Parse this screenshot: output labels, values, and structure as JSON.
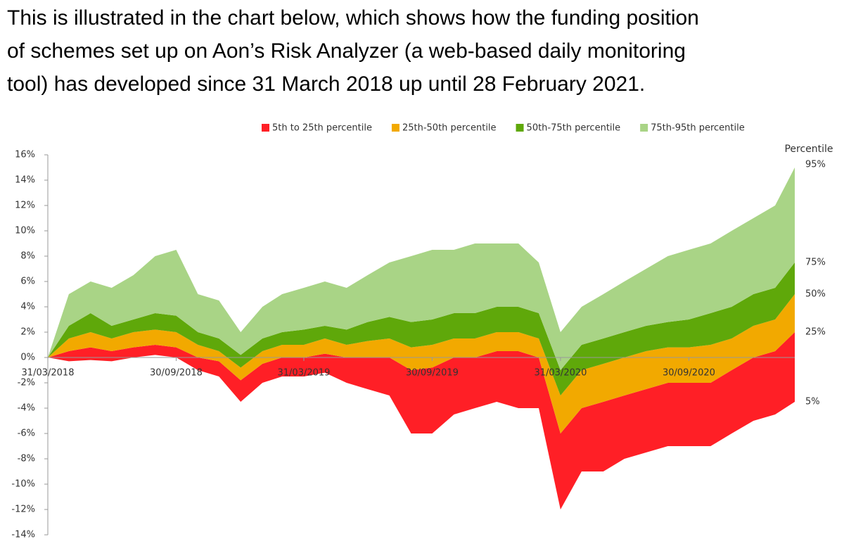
{
  "intro": [
    "This is illustrated in the chart below, which shows how the funding position",
    "of schemes set up on Aon’s Risk Analyzer (a web-based daily monitoring",
    "tool) has developed since 31 March 2018 up until 28 February 2021."
  ],
  "chart_data": {
    "type": "fan",
    "x": [
      "2018-03-31",
      "2018-04-30",
      "2018-05-31",
      "2018-06-30",
      "2018-07-31",
      "2018-08-31",
      "2018-09-30",
      "2018-10-31",
      "2018-11-30",
      "2018-12-31",
      "2019-01-31",
      "2019-02-28",
      "2019-03-31",
      "2019-04-30",
      "2019-05-31",
      "2019-06-30",
      "2019-07-31",
      "2019-08-31",
      "2019-09-30",
      "2019-10-31",
      "2019-11-30",
      "2019-12-31",
      "2020-01-31",
      "2020-02-29",
      "2020-03-31",
      "2020-04-30",
      "2020-05-31",
      "2020-06-30",
      "2020-07-31",
      "2020-08-31",
      "2020-09-30",
      "2020-10-31",
      "2020-11-30",
      "2020-12-31",
      "2021-01-31",
      "2021-02-28"
    ],
    "percentile_title": "Percentile",
    "percentiles": [
      {
        "label": "5%",
        "values": [
          0,
          -0.3,
          -0.2,
          -0.3,
          0,
          0.2,
          0,
          -1,
          -1.5,
          -3.5,
          -2,
          -1.5,
          -1.5,
          -1.2,
          -2,
          -2.5,
          -3,
          -6,
          -6,
          -4.5,
          -4,
          -3.5,
          -4,
          -4,
          -12,
          -9,
          -9,
          -8,
          -7.5,
          -7,
          -7,
          -7,
          -6,
          -5,
          -4.5,
          -3.5
        ]
      },
      {
        "label": "25%",
        "values": [
          0,
          0.5,
          0.8,
          0.5,
          0.8,
          1,
          0.8,
          0,
          -0.3,
          -1.8,
          -0.5,
          0,
          0,
          0.3,
          0,
          0,
          0,
          -1,
          -0.8,
          0,
          0,
          0.5,
          0.5,
          0,
          -6,
          -4,
          -3.5,
          -3,
          -2.5,
          -2,
          -2,
          -2,
          -1,
          0,
          0.5,
          2
        ]
      },
      {
        "label": "50%",
        "values": [
          0,
          1.5,
          2,
          1.5,
          2,
          2.2,
          2,
          1,
          0.5,
          -0.8,
          0.5,
          1,
          1,
          1.5,
          1,
          1.3,
          1.5,
          0.8,
          1,
          1.5,
          1.5,
          2,
          2,
          1.5,
          -3,
          -1,
          -0.5,
          0,
          0.5,
          0.8,
          0.8,
          1,
          1.5,
          2.5,
          3,
          5
        ]
      },
      {
        "label": "75%",
        "values": [
          0,
          2.5,
          3.5,
          2.5,
          3,
          3.5,
          3.3,
          2,
          1.5,
          0.2,
          1.5,
          2,
          2.2,
          2.5,
          2.2,
          2.8,
          3.2,
          2.8,
          3,
          3.5,
          3.5,
          4,
          4,
          3.5,
          -1,
          1,
          1.5,
          2,
          2.5,
          2.8,
          3,
          3.5,
          4,
          5,
          5.5,
          7.5
        ]
      },
      {
        "label": "95%",
        "values": [
          0,
          5,
          6,
          5.5,
          6.5,
          8,
          8.5,
          5,
          4.5,
          2,
          4,
          5,
          5.5,
          6,
          5.5,
          6.5,
          7.5,
          8,
          8.5,
          8.5,
          9,
          9,
          9,
          7.5,
          2,
          4,
          5,
          6,
          7,
          8,
          8.5,
          9,
          10,
          11,
          12,
          15
        ]
      }
    ],
    "series": [
      {
        "name": "5th to 25th percentile",
        "color": "#ff1f26"
      },
      {
        "name": "25th-50th percentile",
        "color": "#f2a900"
      },
      {
        "name": "50th-75th percentile",
        "color": "#5fa80a"
      },
      {
        "name": "75th-95th percentile",
        "color": "#a9d486"
      }
    ],
    "xlim": [
      "2018-03-31",
      "2021-02-28"
    ],
    "xticks": [
      {
        "value": "2018-03-31",
        "label": "31/03/2018"
      },
      {
        "value": "2018-09-30",
        "label": "30/09/2018"
      },
      {
        "value": "2019-03-31",
        "label": "31/03/2019"
      },
      {
        "value": "2019-09-30",
        "label": "30/09/2019"
      },
      {
        "value": "2020-03-31",
        "label": "31/03/2020"
      },
      {
        "value": "2020-09-30",
        "label": "30/09/2020"
      }
    ],
    "ylim": [
      -14,
      16
    ],
    "yticks": [
      {
        "value": -14,
        "label": "-14%"
      },
      {
        "value": -12,
        "label": "-12%"
      },
      {
        "value": -10,
        "label": "-10%"
      },
      {
        "value": -8,
        "label": "-8%"
      },
      {
        "value": -6,
        "label": "-6%"
      },
      {
        "value": -4,
        "label": "-4%"
      },
      {
        "value": -2,
        "label": "-2%"
      },
      {
        "value": 0,
        "label": "0%"
      },
      {
        "value": 2,
        "label": "2%"
      },
      {
        "value": 4,
        "label": "4%"
      },
      {
        "value": 6,
        "label": "6%"
      },
      {
        "value": 8,
        "label": "8%"
      },
      {
        "value": 10,
        "label": "10%"
      },
      {
        "value": 12,
        "label": "12%"
      },
      {
        "value": 14,
        "label": "14%"
      },
      {
        "value": 16,
        "label": "16%"
      }
    ]
  }
}
